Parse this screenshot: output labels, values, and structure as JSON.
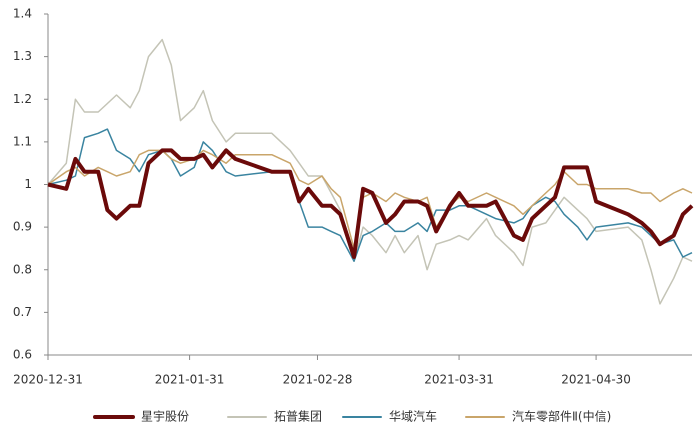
{
  "chart_data": {
    "type": "line",
    "x": [
      "2020-12-31",
      "2021-01-04",
      "2021-01-06",
      "2021-01-08",
      "2021-01-11",
      "2021-01-13",
      "2021-01-15",
      "2021-01-18",
      "2021-01-20",
      "2021-01-22",
      "2021-01-25",
      "2021-01-27",
      "2021-01-29",
      "2021-02-01",
      "2021-02-03",
      "2021-02-05",
      "2021-02-08",
      "2021-02-10",
      "2021-02-18",
      "2021-02-22",
      "2021-02-24",
      "2021-02-26",
      "2021-03-01",
      "2021-03-03",
      "2021-03-05",
      "2021-03-08",
      "2021-03-10",
      "2021-03-12",
      "2021-03-15",
      "2021-03-17",
      "2021-03-19",
      "2021-03-22",
      "2021-03-24",
      "2021-03-26",
      "2021-03-29",
      "2021-03-31",
      "2021-04-02",
      "2021-04-06",
      "2021-04-08",
      "2021-04-12",
      "2021-04-14",
      "2021-04-16",
      "2021-04-19",
      "2021-04-21",
      "2021-04-23",
      "2021-04-26",
      "2021-04-28",
      "2021-04-30",
      "2021-05-07",
      "2021-05-10",
      "2021-05-12",
      "2021-05-14",
      "2021-05-17",
      "2021-05-19",
      "2021-05-21"
    ],
    "series": [
      {
        "name": "星宇股份",
        "color": "#6b0a0a",
        "width": 4,
        "values": [
          1.0,
          0.99,
          1.06,
          1.03,
          1.03,
          0.94,
          0.92,
          0.95,
          0.95,
          1.05,
          1.08,
          1.08,
          1.06,
          1.06,
          1.07,
          1.04,
          1.08,
          1.06,
          1.03,
          1.03,
          0.96,
          0.99,
          0.95,
          0.95,
          0.93,
          0.83,
          0.99,
          0.98,
          0.91,
          0.93,
          0.96,
          0.96,
          0.95,
          0.89,
          0.95,
          0.98,
          0.95,
          0.95,
          0.96,
          0.88,
          0.87,
          0.92,
          0.95,
          0.97,
          1.04,
          1.04,
          1.04,
          0.96,
          0.93,
          0.91,
          0.89,
          0.86,
          0.88,
          0.93,
          0.95
        ]
      },
      {
        "name": "拓普集团",
        "color": "#c4c4b6",
        "width": 1.5,
        "values": [
          1.0,
          1.05,
          1.2,
          1.17,
          1.17,
          1.19,
          1.21,
          1.18,
          1.22,
          1.3,
          1.34,
          1.28,
          1.15,
          1.18,
          1.22,
          1.15,
          1.1,
          1.12,
          1.12,
          1.08,
          1.05,
          1.02,
          1.02,
          0.98,
          0.94,
          0.82,
          0.9,
          0.88,
          0.84,
          0.88,
          0.84,
          0.88,
          0.8,
          0.86,
          0.87,
          0.88,
          0.87,
          0.92,
          0.88,
          0.84,
          0.81,
          0.9,
          0.91,
          0.94,
          0.97,
          0.94,
          0.92,
          0.89,
          0.9,
          0.87,
          0.8,
          0.72,
          0.78,
          0.83,
          0.82
        ]
      },
      {
        "name": "华域汽车",
        "color": "#3a84a0",
        "width": 1.5,
        "values": [
          1.0,
          1.01,
          1.02,
          1.11,
          1.12,
          1.13,
          1.08,
          1.06,
          1.03,
          1.07,
          1.08,
          1.06,
          1.02,
          1.04,
          1.1,
          1.08,
          1.03,
          1.02,
          1.03,
          1.03,
          0.96,
          0.9,
          0.9,
          0.89,
          0.88,
          0.82,
          0.88,
          0.89,
          0.91,
          0.89,
          0.89,
          0.91,
          0.89,
          0.94,
          0.94,
          0.95,
          0.95,
          0.93,
          0.92,
          0.91,
          0.92,
          0.95,
          0.97,
          0.96,
          0.93,
          0.9,
          0.87,
          0.9,
          0.91,
          0.9,
          0.88,
          0.86,
          0.87,
          0.83,
          0.84
        ]
      },
      {
        "name": "汽车零部件Ⅱ(中信)",
        "color": "#c9a56a",
        "width": 1.5,
        "values": [
          1.0,
          1.03,
          1.04,
          1.02,
          1.04,
          1.03,
          1.02,
          1.03,
          1.07,
          1.08,
          1.08,
          1.06,
          1.05,
          1.06,
          1.08,
          1.07,
          1.05,
          1.07,
          1.07,
          1.05,
          1.01,
          1.0,
          1.02,
          0.99,
          0.97,
          0.85,
          0.97,
          0.98,
          0.96,
          0.98,
          0.97,
          0.96,
          0.97,
          0.9,
          0.95,
          0.97,
          0.96,
          0.98,
          0.97,
          0.95,
          0.93,
          0.95,
          0.98,
          1.0,
          1.03,
          1.0,
          1.0,
          0.99,
          0.99,
          0.98,
          0.98,
          0.96,
          0.98,
          0.99,
          0.98
        ]
      }
    ],
    "xlim": [
      "2020-12-31",
      "2021-05-21"
    ],
    "xticks": [
      "2020-12-31",
      "2021-01-31",
      "2021-02-28",
      "2021-03-31",
      "2021-04-30"
    ],
    "ylim": [
      0.6,
      1.4
    ],
    "yticks": [
      0.6,
      0.7,
      0.8,
      0.9,
      1,
      1.1,
      1.2,
      1.3,
      1.4
    ],
    "legend": "bottom"
  }
}
